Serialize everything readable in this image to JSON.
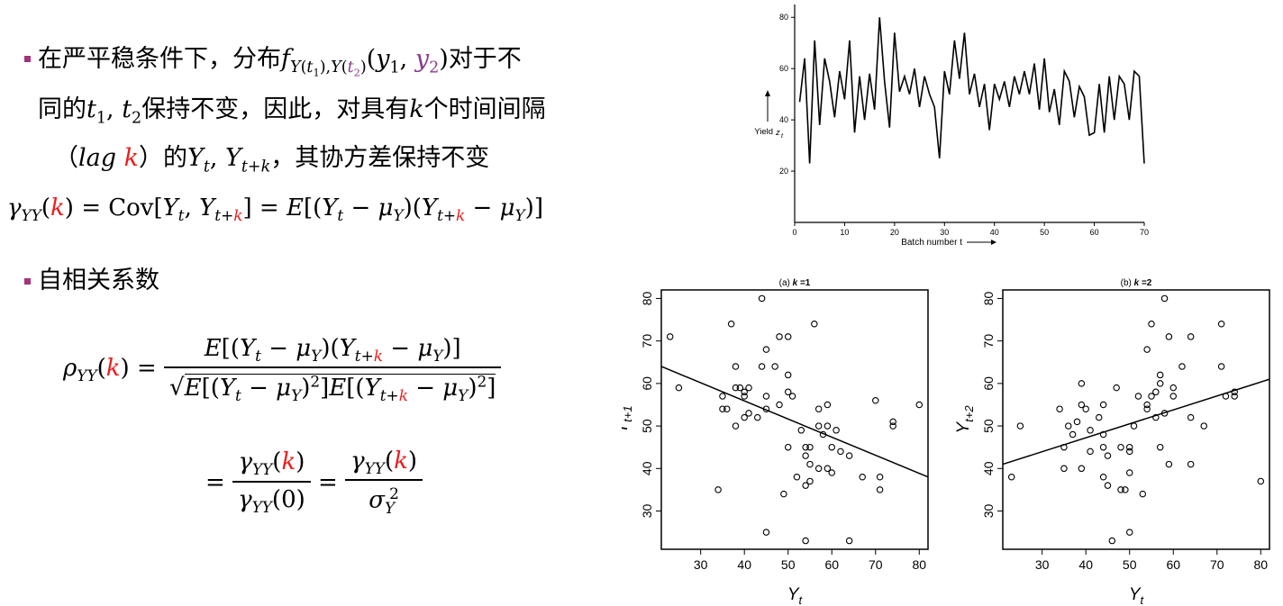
{
  "text": {
    "b1_l1_pre": "在严平稳条件下，分布",
    "b1_l1_post": "对于不",
    "b1_l2_pre": "同的",
    "b1_l2_mid": "保持不变，因此，对具有",
    "b1_l2_post": "个时间间隔",
    "b1_l3_open": "（",
    "b1_l3_lag": "lag",
    "b1_l3_k": "k",
    "b1_l3_close": "）的",
    "b1_l3_post": "，其协方差保持不变",
    "b2_label": "自相关系数"
  },
  "chart_data": [
    {
      "type": "line",
      "xlabel": "Batch number t",
      "ylabel": "Yield z_t",
      "xlim": [
        0,
        70
      ],
      "ylim": [
        0,
        85
      ],
      "xticks": [
        "0",
        "10",
        "20",
        "30",
        "40",
        "50",
        "60",
        "70"
      ],
      "yticks": [
        "20",
        "40",
        "60",
        "80"
      ],
      "x": [
        1,
        2,
        3,
        4,
        5,
        6,
        7,
        8,
        9,
        10,
        11,
        12,
        13,
        14,
        15,
        16,
        17,
        18,
        19,
        20,
        21,
        22,
        23,
        24,
        25,
        26,
        27,
        28,
        29,
        30,
        31,
        32,
        33,
        34,
        35,
        36,
        37,
        38,
        39,
        40,
        41,
        42,
        43,
        44,
        45,
        46,
        47,
        48,
        49,
        50,
        51,
        52,
        53,
        54,
        55,
        56,
        57,
        58,
        59,
        60,
        61,
        62,
        63,
        64,
        65,
        66,
        67,
        68,
        69,
        70
      ],
      "y": [
        47,
        64,
        23,
        71,
        38,
        64,
        55,
        41,
        59,
        48,
        71,
        35,
        57,
        40,
        58,
        44,
        80,
        55,
        37,
        74,
        51,
        57,
        50,
        60,
        45,
        57,
        50,
        45,
        25,
        59,
        50,
        71,
        56,
        74,
        50,
        58,
        45,
        54,
        36,
        54,
        48,
        55,
        45,
        57,
        50,
        59,
        50,
        62,
        44,
        64,
        43,
        52,
        38,
        59,
        55,
        41,
        53,
        49,
        34,
        35,
        54,
        35,
        57,
        40,
        57,
        54,
        40,
        59,
        57,
        23
      ]
    },
    {
      "type": "scatter",
      "title": "(a) k = 1",
      "title_prefix": "(a)",
      "title_k": "k",
      "title_suffix": "=1",
      "xlabel": "Y_t",
      "ylabel": "Y_{t+1}",
      "xlim": [
        21,
        82
      ],
      "ylim": [
        21,
        82
      ],
      "xticks": [
        "30",
        "40",
        "50",
        "60",
        "70",
        "80"
      ],
      "yticks": [
        "30",
        "40",
        "50",
        "60",
        "70",
        "80"
      ],
      "fit_line": [
        [
          21,
          64
        ],
        [
          82,
          38
        ]
      ],
      "points": [
        [
          23,
          71
        ],
        [
          25,
          59
        ],
        [
          34,
          35
        ],
        [
          35,
          57
        ],
        [
          35,
          54
        ],
        [
          36,
          54
        ],
        [
          37,
          74
        ],
        [
          38,
          64
        ],
        [
          38,
          59
        ],
        [
          38,
          50
        ],
        [
          39,
          59
        ],
        [
          40,
          58
        ],
        [
          40,
          57
        ],
        [
          40,
          52
        ],
        [
          41,
          59
        ],
        [
          41,
          53
        ],
        [
          43,
          52
        ],
        [
          44,
          80
        ],
        [
          44,
          64
        ],
        [
          45,
          68
        ],
        [
          45,
          57
        ],
        [
          45,
          54
        ],
        [
          45,
          25
        ],
        [
          47,
          64
        ],
        [
          48,
          71
        ],
        [
          48,
          55
        ],
        [
          49,
          34
        ],
        [
          50,
          71
        ],
        [
          50,
          62
        ],
        [
          50,
          58
        ],
        [
          50,
          45
        ],
        [
          51,
          57
        ],
        [
          52,
          38
        ],
        [
          53,
          49
        ],
        [
          54,
          23
        ],
        [
          54,
          45
        ],
        [
          54,
          43
        ],
        [
          54,
          36
        ],
        [
          55,
          45
        ],
        [
          55,
          37
        ],
        [
          55,
          41
        ],
        [
          56,
          74
        ],
        [
          57,
          50
        ],
        [
          57,
          40
        ],
        [
          57,
          54
        ],
        [
          58,
          48
        ],
        [
          59,
          50
        ],
        [
          59,
          55
        ],
        [
          59,
          40
        ],
        [
          60,
          45
        ],
        [
          60,
          39
        ],
        [
          61,
          49
        ],
        [
          62,
          44
        ],
        [
          64,
          23
        ],
        [
          64,
          43
        ],
        [
          67,
          38
        ],
        [
          70,
          56
        ],
        [
          71,
          35
        ],
        [
          71,
          38
        ],
        [
          74,
          51
        ],
        [
          74,
          50
        ],
        [
          80,
          55
        ]
      ]
    },
    {
      "type": "scatter",
      "title": "(b) k = 2",
      "title_prefix": "(b)",
      "title_k": "k",
      "title_suffix": "=2",
      "xlabel": "Y_t",
      "ylabel": "Y_{t+2}",
      "xlim": [
        21,
        82
      ],
      "ylim": [
        21,
        82
      ],
      "xticks": [
        "30",
        "40",
        "50",
        "60",
        "70",
        "80"
      ],
      "yticks": [
        "30",
        "40",
        "50",
        "60",
        "70",
        "80"
      ],
      "fit_line": [
        [
          21,
          41
        ],
        [
          82,
          61
        ]
      ],
      "points": [
        [
          23,
          38
        ],
        [
          25,
          50
        ],
        [
          34,
          54
        ],
        [
          35,
          45
        ],
        [
          35,
          40
        ],
        [
          36,
          50
        ],
        [
          37,
          48
        ],
        [
          38,
          51
        ],
        [
          39,
          60
        ],
        [
          39,
          55
        ],
        [
          39,
          40
        ],
        [
          40,
          54
        ],
        [
          41,
          49
        ],
        [
          41,
          44
        ],
        [
          43,
          52
        ],
        [
          44,
          55
        ],
        [
          44,
          45
        ],
        [
          44,
          38
        ],
        [
          44,
          48
        ],
        [
          45,
          36
        ],
        [
          45,
          43
        ],
        [
          46,
          23
        ],
        [
          47,
          59
        ],
        [
          48,
          45
        ],
        [
          48,
          35
        ],
        [
          49,
          35
        ],
        [
          50,
          44
        ],
        [
          50,
          45
        ],
        [
          50,
          39
        ],
        [
          50,
          25
        ],
        [
          51,
          50
        ],
        [
          52,
          57
        ],
        [
          53,
          34
        ],
        [
          54,
          68
        ],
        [
          54,
          55
        ],
        [
          54,
          54
        ],
        [
          55,
          74
        ],
        [
          55,
          57
        ],
        [
          56,
          58
        ],
        [
          56,
          52
        ],
        [
          57,
          45
        ],
        [
          57,
          62
        ],
        [
          57,
          60
        ],
        [
          58,
          53
        ],
        [
          58,
          80
        ],
        [
          59,
          41
        ],
        [
          59,
          71
        ],
        [
          60,
          59
        ],
        [
          60,
          57
        ],
        [
          62,
          64
        ],
        [
          64,
          41
        ],
        [
          64,
          71
        ],
        [
          64,
          52
        ],
        [
          67,
          50
        ],
        [
          71,
          74
        ],
        [
          71,
          64
        ],
        [
          72,
          57
        ],
        [
          74,
          57
        ],
        [
          74,
          58
        ],
        [
          80,
          37
        ]
      ]
    }
  ]
}
